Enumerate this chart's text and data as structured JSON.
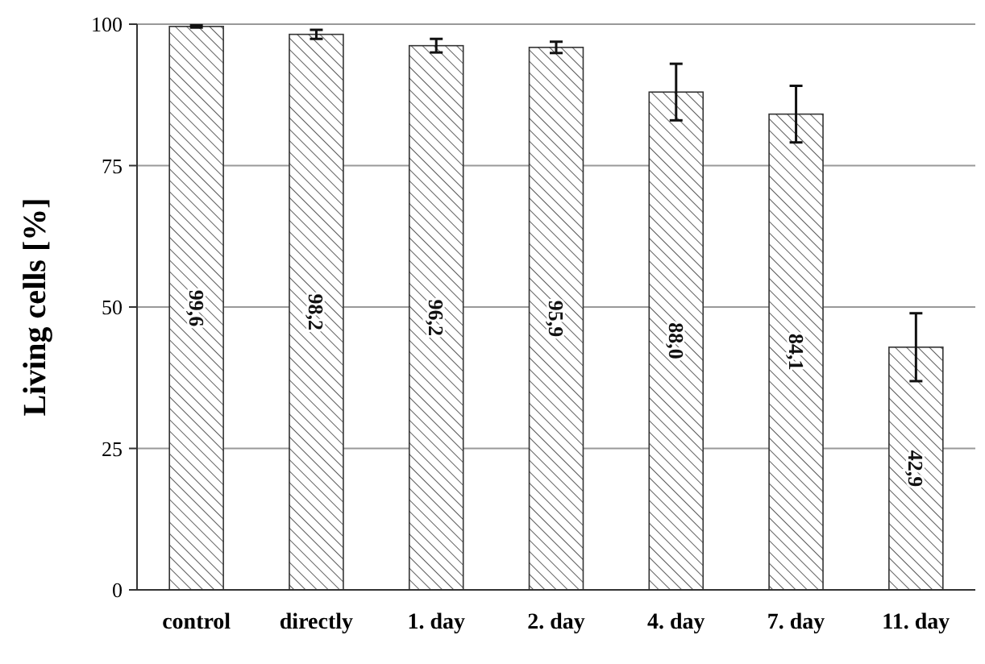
{
  "chart_data": {
    "type": "bar",
    "ylabel": "Living cells [%]",
    "categories": [
      "control",
      "directly",
      "1. day",
      "2. day",
      "4. day",
      "7. day",
      "11. day"
    ],
    "values": [
      99.6,
      98.2,
      96.2,
      95.9,
      88.0,
      84.1,
      42.9
    ],
    "value_labels": [
      "99,6",
      "98,2",
      "96,2",
      "95,9",
      "88,0",
      "84,1",
      "42,9"
    ],
    "errors": [
      0.2,
      0.8,
      1.2,
      1.0,
      5,
      5,
      6
    ],
    "color": "#333333",
    "ylim": [
      0,
      100
    ],
    "yticks": [
      0,
      25,
      50,
      75,
      100
    ],
    "grid": "y"
  }
}
